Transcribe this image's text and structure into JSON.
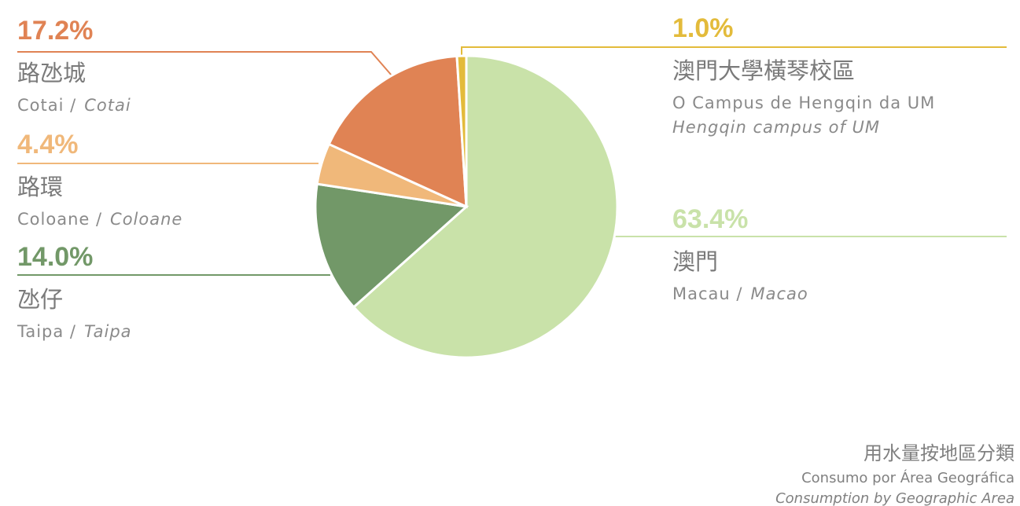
{
  "chart_data": {
    "type": "pie",
    "title": "用水量按地區分類",
    "subtitles": [
      "Consumo por Área Geográfica",
      "Consumption by Geographic Area"
    ],
    "categories": [
      "澳門",
      "氹仔",
      "路環",
      "路氹城",
      "澳門大學橫琴校區"
    ],
    "labels_pt": [
      "Macau /",
      "Taipa /",
      "Coloane /",
      "Cotai /",
      "O Campus de Hengqin da UM"
    ],
    "labels_en": [
      "Macao",
      "Taipa",
      "Coloane",
      "Cotai",
      "Hengqin campus of UM"
    ],
    "values": [
      63.4,
      14.0,
      4.4,
      17.2,
      1.0
    ],
    "value_labels": [
      "63.4%",
      "14.0%",
      "4.4%",
      "17.2%",
      "1.0%"
    ],
    "colors": [
      "#c9e2a9",
      "#729868",
      "#f0b87a",
      "#e08354",
      "#e3bb3b"
    ]
  }
}
